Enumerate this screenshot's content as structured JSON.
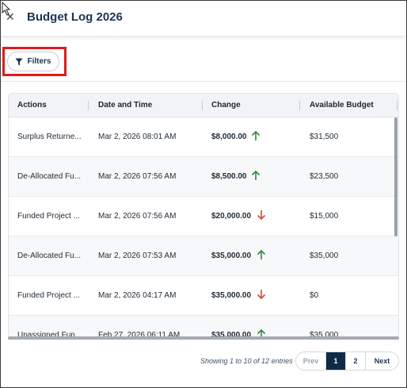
{
  "window": {
    "title": "Budget Log 2026"
  },
  "toolbar": {
    "filters_label": "Filters"
  },
  "table": {
    "columns": [
      "Actions",
      "Date and Time",
      "Change",
      "Available Budget"
    ],
    "rows": [
      {
        "action": "Surplus Returne...",
        "datetime": "Mar 2, 2026 08:01 AM",
        "change": "$8,000.00",
        "direction": "up",
        "available": "$31,500"
      },
      {
        "action": "De-Allocated Fu...",
        "datetime": "Mar 2, 2026 07:56 AM",
        "change": "$8,500.00",
        "direction": "up",
        "available": "$23,500"
      },
      {
        "action": "Funded Project ...",
        "datetime": "Mar 2, 2026 07:56 AM",
        "change": "$20,000.00",
        "direction": "down",
        "available": "$15,000"
      },
      {
        "action": "De-Allocated Fu...",
        "datetime": "Mar 2, 2026 07:53 AM",
        "change": "$35,000.00",
        "direction": "up",
        "available": "$35,000"
      },
      {
        "action": "Funded Project ...",
        "datetime": "Mar 2, 2026 04:17 AM",
        "change": "$35,000.00",
        "direction": "down",
        "available": "$0"
      },
      {
        "action": "Unassigned Fun...",
        "datetime": "Feb 27, 2026 06:11 AM",
        "change": "$35,000.00",
        "direction": "up",
        "available": "$35,000"
      }
    ]
  },
  "pagination": {
    "showing": "Showing 1 to 10 of 12 entries",
    "prev": "Prev",
    "pages": [
      "1",
      "2"
    ],
    "current_page": "1",
    "next": "Next"
  },
  "colors": {
    "up": "#2e8b3e",
    "down": "#d9472b",
    "accent": "#0e2a47",
    "highlight": "#e01b1b"
  }
}
